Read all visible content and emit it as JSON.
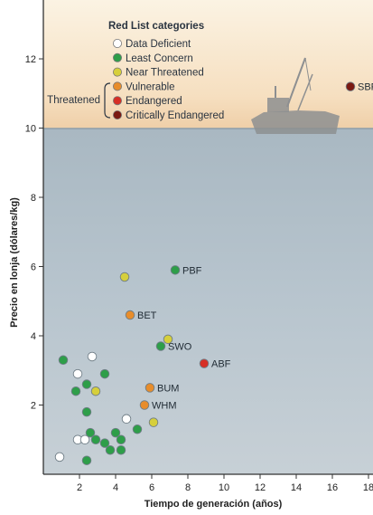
{
  "chart_data": {
    "type": "scatter",
    "title": "",
    "xlabel": "Tiempo de generación (años)",
    "ylabel": "Precio en lonja (dólares/kg)",
    "xlim": [
      0,
      18
    ],
    "ylim": [
      0,
      13.7
    ],
    "x_ticks": [
      "2",
      "4",
      "6",
      "8",
      "10",
      "12",
      "14",
      "16",
      "18"
    ],
    "y_ticks": [
      "2",
      "4",
      "6",
      "8",
      "10",
      "12"
    ],
    "grid": false,
    "legend_placement": "top-left",
    "legend": {
      "title": "Red List categories",
      "group_label": "Threatened",
      "entries": [
        {
          "key": "data_deficient",
          "label": "Data Deficient",
          "color": "#ffffff"
        },
        {
          "key": "least_concern",
          "label": "Least Concern",
          "color": "#2e9e49"
        },
        {
          "key": "near_threatened",
          "label": "Near Threatened",
          "color": "#d6cf3b"
        },
        {
          "key": "vulnerable",
          "label": "Vulnerable",
          "color": "#e88d2b"
        },
        {
          "key": "endangered",
          "label": "Endangered",
          "color": "#d62f25"
        },
        {
          "key": "critically_endangered",
          "label": "Critically Endangered",
          "color": "#7b1a12"
        }
      ]
    },
    "points": [
      {
        "x": 17.0,
        "y": 11.2,
        "category": "critically_endangered",
        "label": "SBF"
      },
      {
        "x": 7.3,
        "y": 5.9,
        "category": "least_concern",
        "label": "PBF"
      },
      {
        "x": 4.5,
        "y": 5.7,
        "category": "near_threatened",
        "label": ""
      },
      {
        "x": 4.8,
        "y": 4.6,
        "category": "vulnerable",
        "label": "BET"
      },
      {
        "x": 6.5,
        "y": 3.7,
        "category": "least_concern",
        "label": "SWO"
      },
      {
        "x": 6.9,
        "y": 3.9,
        "category": "near_threatened",
        "label": ""
      },
      {
        "x": 8.9,
        "y": 3.2,
        "category": "endangered",
        "label": "ABF"
      },
      {
        "x": 5.9,
        "y": 2.5,
        "category": "vulnerable",
        "label": "BUM"
      },
      {
        "x": 5.6,
        "y": 2.0,
        "category": "vulnerable",
        "label": "WHM"
      },
      {
        "x": 1.1,
        "y": 3.3,
        "category": "least_concern",
        "label": ""
      },
      {
        "x": 1.9,
        "y": 2.9,
        "category": "data_deficient",
        "label": ""
      },
      {
        "x": 2.7,
        "y": 3.4,
        "category": "data_deficient",
        "label": ""
      },
      {
        "x": 3.4,
        "y": 2.9,
        "category": "least_concern",
        "label": ""
      },
      {
        "x": 2.4,
        "y": 2.6,
        "category": "least_concern",
        "label": ""
      },
      {
        "x": 1.8,
        "y": 2.4,
        "category": "least_concern",
        "label": ""
      },
      {
        "x": 2.9,
        "y": 2.4,
        "category": "near_threatened",
        "label": ""
      },
      {
        "x": 2.4,
        "y": 1.8,
        "category": "least_concern",
        "label": ""
      },
      {
        "x": 4.6,
        "y": 1.6,
        "category": "data_deficient",
        "label": ""
      },
      {
        "x": 6.1,
        "y": 1.5,
        "category": "near_threatened",
        "label": ""
      },
      {
        "x": 5.2,
        "y": 1.3,
        "category": "least_concern",
        "label": ""
      },
      {
        "x": 2.6,
        "y": 1.2,
        "category": "least_concern",
        "label": ""
      },
      {
        "x": 4.0,
        "y": 1.2,
        "category": "least_concern",
        "label": ""
      },
      {
        "x": 1.9,
        "y": 1.0,
        "category": "data_deficient",
        "label": ""
      },
      {
        "x": 2.3,
        "y": 1.0,
        "category": "data_deficient",
        "label": ""
      },
      {
        "x": 2.9,
        "y": 1.0,
        "category": "least_concern",
        "label": ""
      },
      {
        "x": 4.3,
        "y": 1.0,
        "category": "least_concern",
        "label": ""
      },
      {
        "x": 3.4,
        "y": 0.9,
        "category": "least_concern",
        "label": ""
      },
      {
        "x": 3.7,
        "y": 0.7,
        "category": "least_concern",
        "label": ""
      },
      {
        "x": 4.3,
        "y": 0.7,
        "category": "least_concern",
        "label": ""
      },
      {
        "x": 0.9,
        "y": 0.5,
        "category": "data_deficient",
        "label": ""
      },
      {
        "x": 2.4,
        "y": 0.4,
        "category": "least_concern",
        "label": ""
      }
    ]
  }
}
